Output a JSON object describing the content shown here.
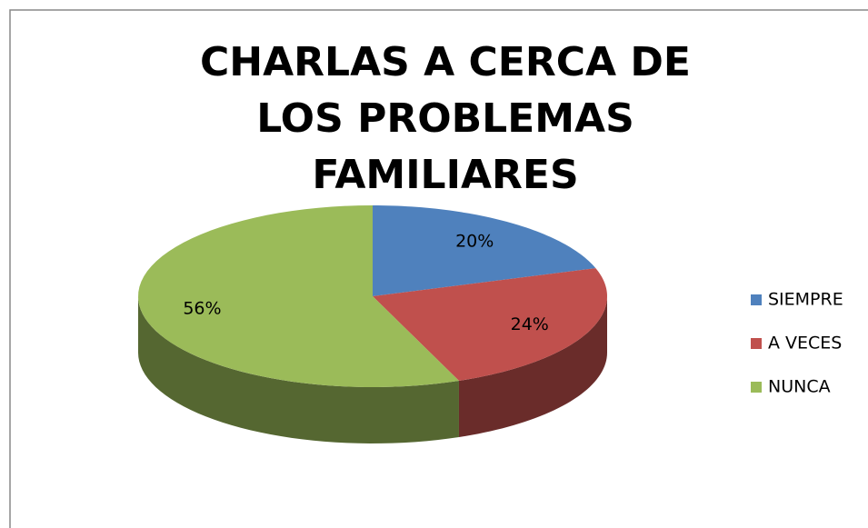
{
  "chart_data": {
    "type": "pie",
    "title": "CHARLAS A CERCA DE LOS PROBLEMAS FAMILIARES",
    "categories": [
      "SIEMPRE",
      "A VECES",
      "NUNCA"
    ],
    "values": [
      20,
      24,
      56
    ],
    "value_labels": [
      "20%",
      "24%",
      "56%"
    ],
    "colors": [
      "#4f81bd",
      "#c0504d",
      "#9bbb59"
    ],
    "legend": "right"
  }
}
